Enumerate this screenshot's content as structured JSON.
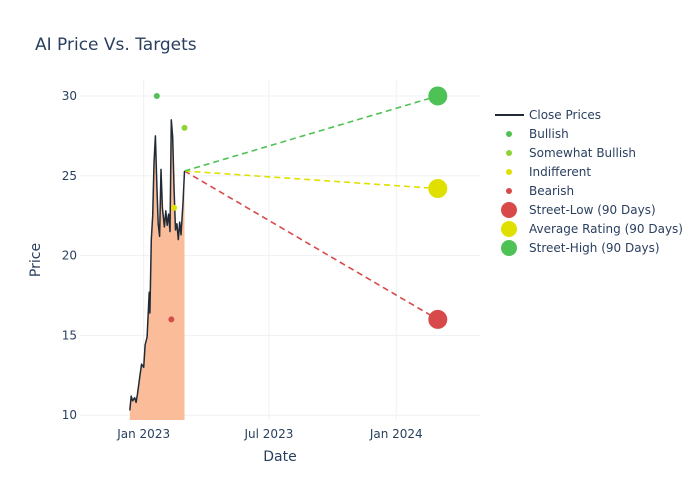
{
  "chart_data": {
    "type": "line",
    "title": "AI Price Vs. Targets",
    "xlabel": "Date",
    "ylabel": "Price",
    "xlim": [
      "2022-10-01",
      "2024-05-01"
    ],
    "ylim": [
      9.7,
      31.0
    ],
    "yticks": [
      10,
      15,
      20,
      25,
      30
    ],
    "xticks": [
      {
        "date": "2023-01-01",
        "label": "Jan 2023"
      },
      {
        "date": "2023-07-01",
        "label": "Jul 2023"
      },
      {
        "date": "2024-01-01",
        "label": "Jan 2024"
      }
    ],
    "grid": true,
    "legend_position": "right",
    "colors": {
      "close": "#222a35",
      "fill": "#fbbc99",
      "bullish": "#4fc255",
      "somewhat_bullish": "#8fd435",
      "indifferent": "#e0e000",
      "bearish": "#d84a4a",
      "street_low": "#d84a4a",
      "average": "#e0e000",
      "street_high": "#4fc255"
    },
    "close_prices": [
      {
        "x": "2022-12-12",
        "y": 10.3
      },
      {
        "x": "2022-12-14",
        "y": 11.2
      },
      {
        "x": "2022-12-16",
        "y": 10.9
      },
      {
        "x": "2022-12-19",
        "y": 11.1
      },
      {
        "x": "2022-12-21",
        "y": 10.8
      },
      {
        "x": "2022-12-23",
        "y": 11.3
      },
      {
        "x": "2022-12-27",
        "y": 12.6
      },
      {
        "x": "2022-12-29",
        "y": 13.2
      },
      {
        "x": "2023-01-01",
        "y": 13.0
      },
      {
        "x": "2023-01-03",
        "y": 14.4
      },
      {
        "x": "2023-01-06",
        "y": 14.9
      },
      {
        "x": "2023-01-09",
        "y": 17.7
      },
      {
        "x": "2023-01-10",
        "y": 16.4
      },
      {
        "x": "2023-01-12",
        "y": 21.0
      },
      {
        "x": "2023-01-14",
        "y": 22.5
      },
      {
        "x": "2023-01-16",
        "y": 25.8
      },
      {
        "x": "2023-01-18",
        "y": 27.5
      },
      {
        "x": "2023-01-20",
        "y": 24.5
      },
      {
        "x": "2023-01-22",
        "y": 22.0
      },
      {
        "x": "2023-01-24",
        "y": 21.2
      },
      {
        "x": "2023-01-26",
        "y": 25.4
      },
      {
        "x": "2023-01-28",
        "y": 23.0
      },
      {
        "x": "2023-01-31",
        "y": 21.8
      },
      {
        "x": "2023-02-02",
        "y": 22.8
      },
      {
        "x": "2023-02-04",
        "y": 21.9
      },
      {
        "x": "2023-02-06",
        "y": 22.6
      },
      {
        "x": "2023-02-08",
        "y": 21.5
      },
      {
        "x": "2023-02-10",
        "y": 28.5
      },
      {
        "x": "2023-02-12",
        "y": 27.4
      },
      {
        "x": "2023-02-14",
        "y": 24.1
      },
      {
        "x": "2023-02-16",
        "y": 21.6
      },
      {
        "x": "2023-02-18",
        "y": 22.0
      },
      {
        "x": "2023-02-20",
        "y": 21.0
      },
      {
        "x": "2023-02-22",
        "y": 22.1
      },
      {
        "x": "2023-02-24",
        "y": 21.3
      },
      {
        "x": "2023-02-27",
        "y": 23.4
      },
      {
        "x": "2023-03-01",
        "y": 25.3
      }
    ],
    "ratings": [
      {
        "name": "Bullish",
        "points": [
          {
            "x": "2023-01-20",
            "y": 30
          }
        ]
      },
      {
        "name": "Somewhat Bullish",
        "points": [
          {
            "x": "2023-03-01",
            "y": 28
          }
        ]
      },
      {
        "name": "Indifferent",
        "points": [
          {
            "x": "2023-02-14",
            "y": 23
          }
        ]
      },
      {
        "name": "Bearish",
        "points": [
          {
            "x": "2023-02-10",
            "y": 16
          }
        ]
      }
    ],
    "targets": [
      {
        "name": "Street-Low (90 Days)",
        "from": {
          "x": "2023-03-01",
          "y": 25.3
        },
        "to": {
          "x": "2024-03-01",
          "y": 16.0
        }
      },
      {
        "name": "Average Rating (90 Days)",
        "from": {
          "x": "2023-03-01",
          "y": 25.3
        },
        "to": {
          "x": "2024-03-01",
          "y": 24.2
        }
      },
      {
        "name": "Street-High (90 Days)",
        "from": {
          "x": "2023-03-01",
          "y": 25.3
        },
        "to": {
          "x": "2024-03-01",
          "y": 30.0
        }
      }
    ],
    "legend": [
      {
        "label": "Close Prices",
        "kind": "line",
        "color_key": "close"
      },
      {
        "label": "Bullish",
        "kind": "dot",
        "color_key": "bullish"
      },
      {
        "label": "Somewhat Bullish",
        "kind": "dot",
        "color_key": "somewhat_bullish"
      },
      {
        "label": "Indifferent",
        "kind": "dot",
        "color_key": "indifferent"
      },
      {
        "label": "Bearish",
        "kind": "dot",
        "color_key": "bearish"
      },
      {
        "label": "Street-Low (90 Days)",
        "kind": "big",
        "color_key": "street_low"
      },
      {
        "label": "Average Rating (90 Days)",
        "kind": "big",
        "color_key": "average"
      },
      {
        "label": "Street-High (90 Days)",
        "kind": "big",
        "color_key": "street_high"
      }
    ]
  }
}
